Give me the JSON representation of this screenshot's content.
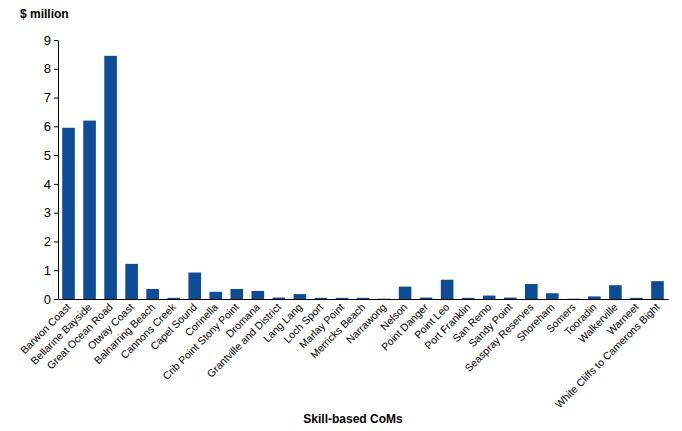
{
  "chart_data": {
    "type": "bar",
    "y_label": "$ million",
    "x_label": "Skill-based CoMs",
    "categories": [
      "Barwon Coast",
      "Bellarine Bayside",
      "Great Ocean Road",
      "Otway Coast",
      "Balnarring Beach",
      "Cannons Creek",
      "Capel Sound",
      "Corinella",
      "Crib Point Stony Point",
      "Dromana",
      "Grantville and District",
      "Lang Lang",
      "Loch Sport",
      "Marlay Point",
      "Merricks Beach",
      "Narrawong",
      "Nelson",
      "Point Danger",
      "Point Leo",
      "Port Franklin",
      "San Remo",
      "Sandy Point",
      "Seaspray Reserves",
      "Shoreham",
      "Somers",
      "Tooradin",
      "Walkerville",
      "Warneet",
      "White Cliffs to Camerons Bight"
    ],
    "values": [
      5.95,
      6.2,
      8.45,
      1.22,
      0.35,
      0.04,
      0.92,
      0.25,
      0.35,
      0.28,
      0.05,
      0.17,
      0.04,
      0.04,
      0.04,
      0.01,
      0.43,
      0.05,
      0.67,
      0.04,
      0.12,
      0.05,
      0.52,
      0.2,
      0.01,
      0.09,
      0.48,
      0.04,
      0.62
    ],
    "color": "#0f4c96",
    "ylim": [
      0,
      9
    ],
    "yticks": [
      0,
      1,
      2,
      3,
      4,
      5,
      6,
      7,
      8,
      9
    ],
    "grid": false
  }
}
